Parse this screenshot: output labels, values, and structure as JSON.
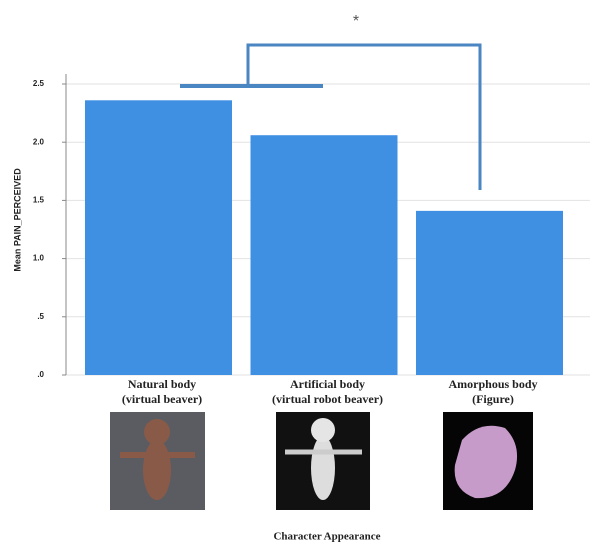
{
  "chart_data": {
    "type": "bar",
    "x_label": "Character Appearance",
    "y_label": "Mean PAIN_PERCEIVED",
    "annotation": "*",
    "categories": [
      [
        "Natural body",
        "(virtual beaver)"
      ],
      [
        "Artificial body",
        "(virtual robot beaver)"
      ],
      [
        "Amorphous body",
        "(Figure)"
      ]
    ],
    "values": [
      2.36,
      2.06,
      1.41
    ],
    "color": "#3f8fe3",
    "ylim": [
      0,
      2.5
    ],
    "yticks": [
      {
        "value": 0,
        "label": ".0"
      },
      {
        "value": 0.5,
        "label": ".5"
      },
      {
        "value": 1,
        "label": "1.0"
      },
      {
        "value": 1.5,
        "label": "1.5"
      },
      {
        "value": 2,
        "label": "2.0"
      },
      {
        "value": 2.5,
        "label": "2.5"
      }
    ],
    "grid": true
  }
}
